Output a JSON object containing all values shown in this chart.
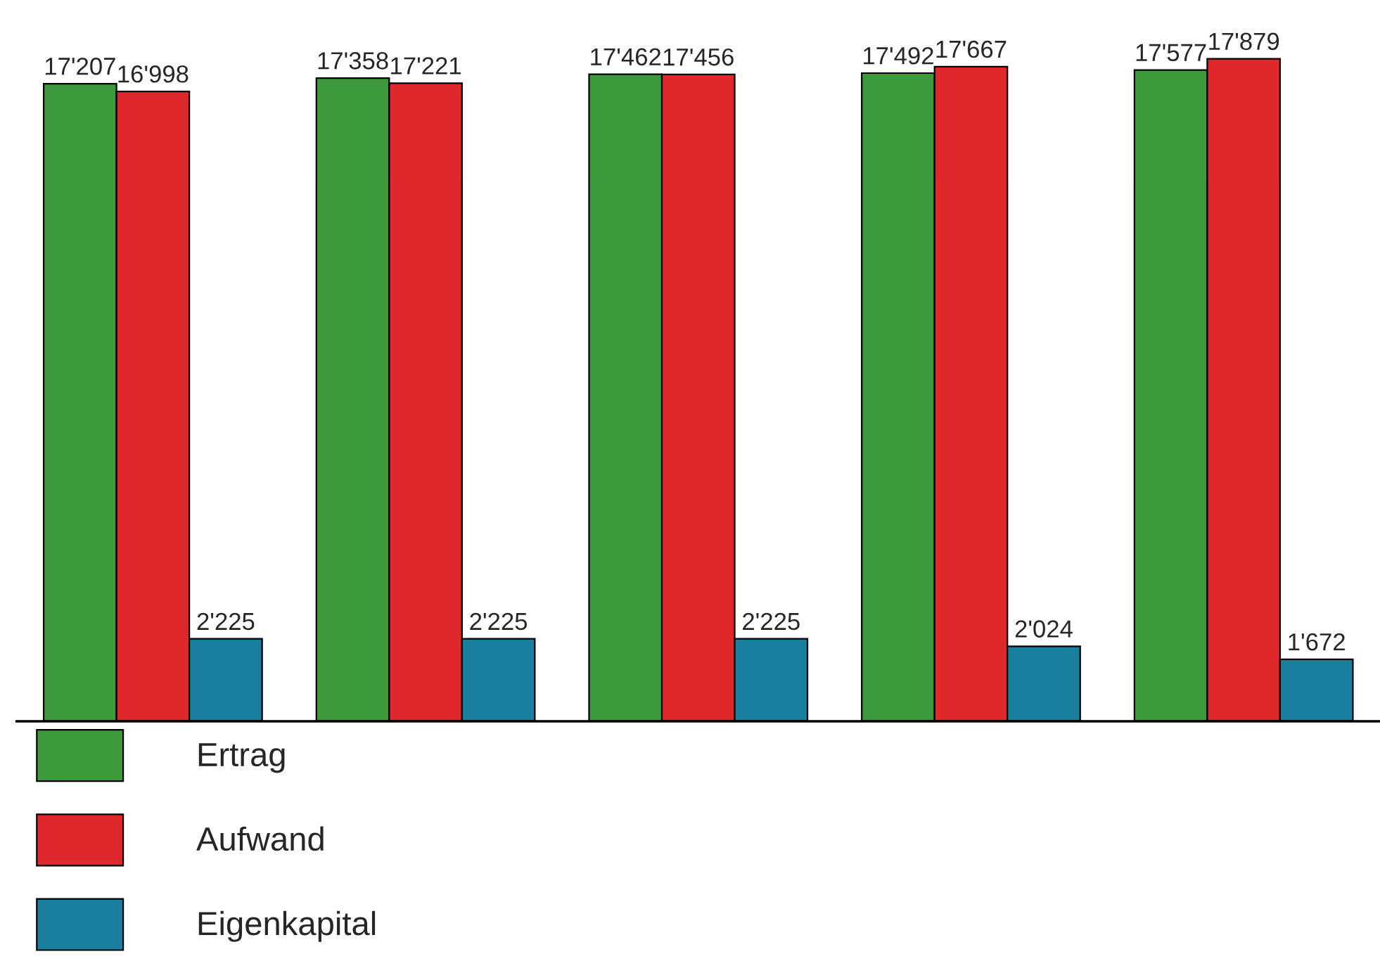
{
  "chart_data": {
    "type": "bar",
    "categories": [
      null,
      null,
      null,
      null,
      null
    ],
    "series": [
      {
        "name": "Ertrag",
        "color": "#3c9a3c",
        "values": [
          17207,
          17358,
          17462,
          17492,
          17577
        ],
        "value_labels": [
          "17'207",
          "17'358",
          "17'462",
          "17'492",
          "17'577"
        ]
      },
      {
        "name": "Aufwand",
        "color": "#e0282c",
        "values": [
          16998,
          17221,
          17456,
          17667,
          17879
        ],
        "value_labels": [
          "16'998",
          "17'221",
          "17'456",
          "17'667",
          "17'879"
        ]
      },
      {
        "name": "Eigenkapital",
        "color": "#1a7f9e",
        "values": [
          2225,
          2225,
          2225,
          2024,
          1672
        ],
        "value_labels": [
          "2'225",
          "2'225",
          "2'225",
          "2'024",
          "1'672"
        ]
      }
    ],
    "legend": "bottom left",
    "grid": false
  }
}
